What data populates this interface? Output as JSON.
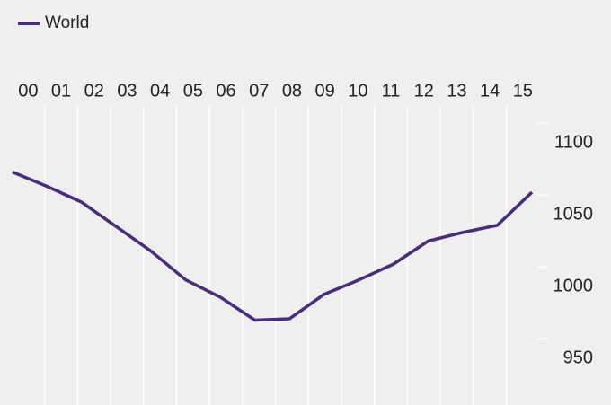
{
  "chart_data": {
    "type": "line",
    "categories": [
      "00",
      "01",
      "02",
      "03",
      "04",
      "05",
      "06",
      "07",
      "08",
      "09",
      "10",
      "11",
      "12",
      "13",
      "14",
      "15"
    ],
    "series": [
      {
        "name": "World",
        "color": "#4b2a84",
        "values": [
          1066,
          1056,
          1045,
          1028,
          1011,
          991,
          979,
          963,
          964,
          981,
          991,
          1002,
          1018,
          1024,
          1029,
          1052
        ]
      }
    ],
    "ylim": [
      904,
      1112
    ],
    "yticks": [
      950,
      1000,
      1050,
      1100
    ],
    "grid": true,
    "legend": "top-left"
  }
}
